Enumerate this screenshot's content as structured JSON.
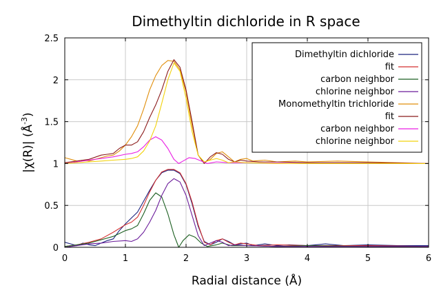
{
  "chart_data": {
    "type": "line",
    "title": "Dimethyltin dichloride in R space",
    "xlabel": "Radial distance    (Å)",
    "ylabel": "|χ(R)|    (Å",
    "ylabel_sup": "-3",
    "ylabel_close": ")",
    "xlim": [
      0,
      6
    ],
    "ylim": [
      0,
      2.5
    ],
    "x_ticks": [
      "0",
      "1",
      "2",
      "3",
      "4",
      "5",
      "6"
    ],
    "y_ticks": [
      "0",
      "0.5",
      "1",
      "1.5",
      "2",
      "2.5"
    ],
    "grid": true,
    "legend_position": "top-right",
    "series": [
      {
        "name": "Dimethyltin dichloride",
        "color": "#1a237e",
        "points": [
          [
            0,
            0.06
          ],
          [
            0.1,
            0.04
          ],
          [
            0.2,
            0.02
          ],
          [
            0.3,
            0.05
          ],
          [
            0.4,
            0.03
          ],
          [
            0.5,
            0.02
          ],
          [
            0.6,
            0.05
          ],
          [
            0.7,
            0.08
          ],
          [
            0.8,
            0.1
          ],
          [
            0.9,
            0.2
          ],
          [
            1.0,
            0.28
          ],
          [
            1.1,
            0.35
          ],
          [
            1.2,
            0.42
          ],
          [
            1.3,
            0.55
          ],
          [
            1.4,
            0.68
          ],
          [
            1.5,
            0.8
          ],
          [
            1.6,
            0.89
          ],
          [
            1.7,
            0.92
          ],
          [
            1.8,
            0.92
          ],
          [
            1.9,
            0.88
          ],
          [
            2.0,
            0.75
          ],
          [
            2.1,
            0.52
          ],
          [
            2.2,
            0.25
          ],
          [
            2.3,
            0.07
          ],
          [
            2.4,
            0.03
          ],
          [
            2.5,
            0.06
          ],
          [
            2.6,
            0.1
          ],
          [
            2.7,
            0.07
          ],
          [
            2.8,
            0.03
          ],
          [
            2.9,
            0.04
          ],
          [
            3.0,
            0.05
          ],
          [
            3.1,
            0.02
          ],
          [
            3.3,
            0.04
          ],
          [
            3.5,
            0.02
          ],
          [
            3.7,
            0.03
          ],
          [
            4.0,
            0.02
          ],
          [
            4.3,
            0.04
          ],
          [
            4.6,
            0.02
          ],
          [
            5.0,
            0.03
          ],
          [
            5.5,
            0.02
          ],
          [
            6.0,
            0.02
          ]
        ]
      },
      {
        "name": "fit",
        "color": "#d32f2f",
        "points": [
          [
            0,
            0.01
          ],
          [
            0.2,
            0.03
          ],
          [
            0.4,
            0.06
          ],
          [
            0.6,
            0.1
          ],
          [
            0.8,
            0.18
          ],
          [
            1.0,
            0.27
          ],
          [
            1.1,
            0.3
          ],
          [
            1.2,
            0.36
          ],
          [
            1.3,
            0.5
          ],
          [
            1.4,
            0.66
          ],
          [
            1.5,
            0.8
          ],
          [
            1.6,
            0.9
          ],
          [
            1.7,
            0.93
          ],
          [
            1.8,
            0.93
          ],
          [
            1.9,
            0.89
          ],
          [
            2.0,
            0.76
          ],
          [
            2.1,
            0.54
          ],
          [
            2.2,
            0.27
          ],
          [
            2.3,
            0.06
          ],
          [
            2.4,
            0.03
          ],
          [
            2.5,
            0.08
          ],
          [
            2.6,
            0.1
          ],
          [
            2.7,
            0.06
          ],
          [
            2.8,
            0.03
          ],
          [
            2.9,
            0.05
          ],
          [
            3.0,
            0.04
          ],
          [
            3.2,
            0.02
          ],
          [
            3.5,
            0.03
          ],
          [
            4.0,
            0.02
          ],
          [
            4.5,
            0.02
          ],
          [
            5.0,
            0.02
          ],
          [
            6.0,
            0.01
          ]
        ]
      },
      {
        "name": "carbon neighbor",
        "color": "#1b5e20",
        "points": [
          [
            0,
            0.01
          ],
          [
            0.2,
            0.03
          ],
          [
            0.4,
            0.05
          ],
          [
            0.6,
            0.09
          ],
          [
            0.8,
            0.13
          ],
          [
            1.0,
            0.2
          ],
          [
            1.1,
            0.22
          ],
          [
            1.2,
            0.26
          ],
          [
            1.3,
            0.4
          ],
          [
            1.4,
            0.56
          ],
          [
            1.5,
            0.65
          ],
          [
            1.6,
            0.6
          ],
          [
            1.7,
            0.4
          ],
          [
            1.8,
            0.15
          ],
          [
            1.88,
            0.0
          ],
          [
            1.95,
            0.08
          ],
          [
            2.05,
            0.15
          ],
          [
            2.15,
            0.12
          ],
          [
            2.25,
            0.05
          ],
          [
            2.35,
            0.01
          ],
          [
            2.5,
            0.03
          ],
          [
            2.6,
            0.05
          ],
          [
            2.75,
            0.02
          ],
          [
            3.0,
            0.02
          ],
          [
            3.5,
            0.01
          ],
          [
            4.0,
            0.02
          ],
          [
            5.0,
            0.01
          ],
          [
            6.0,
            0.01
          ]
        ]
      },
      {
        "name": "chlorine neighbor",
        "color": "#6a1b9a",
        "points": [
          [
            0,
            0.0
          ],
          [
            0.2,
            0.02
          ],
          [
            0.4,
            0.04
          ],
          [
            0.6,
            0.05
          ],
          [
            0.8,
            0.07
          ],
          [
            1.0,
            0.08
          ],
          [
            1.1,
            0.07
          ],
          [
            1.2,
            0.1
          ],
          [
            1.3,
            0.18
          ],
          [
            1.4,
            0.3
          ],
          [
            1.5,
            0.44
          ],
          [
            1.6,
            0.62
          ],
          [
            1.7,
            0.76
          ],
          [
            1.8,
            0.82
          ],
          [
            1.9,
            0.78
          ],
          [
            2.0,
            0.62
          ],
          [
            2.1,
            0.38
          ],
          [
            2.2,
            0.14
          ],
          [
            2.3,
            0.02
          ],
          [
            2.4,
            0.05
          ],
          [
            2.5,
            0.08
          ],
          [
            2.6,
            0.06
          ],
          [
            2.7,
            0.02
          ],
          [
            2.8,
            0.03
          ],
          [
            3.0,
            0.02
          ],
          [
            3.5,
            0.01
          ],
          [
            4.0,
            0.01
          ],
          [
            5.0,
            0.01
          ],
          [
            6.0,
            0.01
          ]
        ]
      },
      {
        "name": "Monomethyltin trichloride",
        "color": "#e08e0b",
        "points": [
          [
            0,
            1.07
          ],
          [
            0.1,
            1.05
          ],
          [
            0.2,
            1.03
          ],
          [
            0.3,
            1.04
          ],
          [
            0.4,
            1.03
          ],
          [
            0.5,
            1.05
          ],
          [
            0.6,
            1.07
          ],
          [
            0.7,
            1.09
          ],
          [
            0.8,
            1.1
          ],
          [
            0.9,
            1.15
          ],
          [
            1.0,
            1.22
          ],
          [
            1.1,
            1.32
          ],
          [
            1.2,
            1.45
          ],
          [
            1.3,
            1.65
          ],
          [
            1.4,
            1.88
          ],
          [
            1.5,
            2.05
          ],
          [
            1.6,
            2.17
          ],
          [
            1.7,
            2.23
          ],
          [
            1.8,
            2.22
          ],
          [
            1.9,
            2.12
          ],
          [
            2.0,
            1.85
          ],
          [
            2.1,
            1.45
          ],
          [
            2.2,
            1.1
          ],
          [
            2.3,
            1.01
          ],
          [
            2.4,
            1.05
          ],
          [
            2.5,
            1.12
          ],
          [
            2.6,
            1.14
          ],
          [
            2.7,
            1.08
          ],
          [
            2.8,
            1.02
          ],
          [
            2.9,
            1.05
          ],
          [
            3.0,
            1.06
          ],
          [
            3.1,
            1.03
          ],
          [
            3.3,
            1.04
          ],
          [
            3.5,
            1.02
          ],
          [
            3.8,
            1.03
          ],
          [
            4.0,
            1.02
          ],
          [
            4.5,
            1.03
          ],
          [
            5.0,
            1.02
          ],
          [
            5.5,
            1.01
          ],
          [
            6.0,
            1.0
          ]
        ]
      },
      {
        "name": "fit",
        "color": "#8b1a1a",
        "points": [
          [
            0,
            1.01
          ],
          [
            0.2,
            1.03
          ],
          [
            0.4,
            1.05
          ],
          [
            0.6,
            1.1
          ],
          [
            0.7,
            1.11
          ],
          [
            0.8,
            1.12
          ],
          [
            0.9,
            1.18
          ],
          [
            1.0,
            1.22
          ],
          [
            1.1,
            1.22
          ],
          [
            1.2,
            1.26
          ],
          [
            1.3,
            1.38
          ],
          [
            1.4,
            1.55
          ],
          [
            1.5,
            1.7
          ],
          [
            1.6,
            1.88
          ],
          [
            1.7,
            2.1
          ],
          [
            1.8,
            2.24
          ],
          [
            1.9,
            2.15
          ],
          [
            2.0,
            1.88
          ],
          [
            2.1,
            1.5
          ],
          [
            2.2,
            1.1
          ],
          [
            2.3,
            1.0
          ],
          [
            2.4,
            1.08
          ],
          [
            2.5,
            1.13
          ],
          [
            2.6,
            1.11
          ],
          [
            2.7,
            1.05
          ],
          [
            2.8,
            1.02
          ],
          [
            2.9,
            1.04
          ],
          [
            3.0,
            1.03
          ],
          [
            3.2,
            1.02
          ],
          [
            3.5,
            1.02
          ],
          [
            4.0,
            1.01
          ],
          [
            5.0,
            1.01
          ],
          [
            6.0,
            1.0
          ]
        ]
      },
      {
        "name": "carbon neighbor",
        "color": "#e91ee3",
        "points": [
          [
            0,
            1.0
          ],
          [
            0.2,
            1.02
          ],
          [
            0.4,
            1.04
          ],
          [
            0.6,
            1.06
          ],
          [
            0.8,
            1.08
          ],
          [
            1.0,
            1.11
          ],
          [
            1.1,
            1.12
          ],
          [
            1.2,
            1.14
          ],
          [
            1.3,
            1.2
          ],
          [
            1.4,
            1.28
          ],
          [
            1.5,
            1.32
          ],
          [
            1.6,
            1.28
          ],
          [
            1.7,
            1.18
          ],
          [
            1.8,
            1.05
          ],
          [
            1.88,
            1.0
          ],
          [
            1.95,
            1.03
          ],
          [
            2.05,
            1.07
          ],
          [
            2.15,
            1.06
          ],
          [
            2.25,
            1.03
          ],
          [
            2.35,
            1.0
          ],
          [
            2.5,
            1.02
          ],
          [
            2.7,
            1.01
          ],
          [
            3.0,
            1.01
          ],
          [
            4.0,
            1.0
          ],
          [
            6.0,
            1.0
          ]
        ]
      },
      {
        "name": "chlorine neighbor",
        "color": "#f2d20c",
        "points": [
          [
            0,
            1.0
          ],
          [
            0.2,
            1.01
          ],
          [
            0.4,
            1.02
          ],
          [
            0.6,
            1.03
          ],
          [
            0.8,
            1.04
          ],
          [
            1.0,
            1.05
          ],
          [
            1.1,
            1.06
          ],
          [
            1.2,
            1.08
          ],
          [
            1.3,
            1.15
          ],
          [
            1.4,
            1.27
          ],
          [
            1.5,
            1.45
          ],
          [
            1.6,
            1.72
          ],
          [
            1.7,
            2.0
          ],
          [
            1.8,
            2.2
          ],
          [
            1.9,
            2.1
          ],
          [
            2.0,
            1.78
          ],
          [
            2.1,
            1.38
          ],
          [
            2.2,
            1.1
          ],
          [
            2.3,
            1.02
          ],
          [
            2.4,
            1.04
          ],
          [
            2.5,
            1.06
          ],
          [
            2.6,
            1.04
          ],
          [
            2.7,
            1.01
          ],
          [
            2.8,
            1.02
          ],
          [
            3.0,
            1.01
          ],
          [
            3.5,
            1.0
          ],
          [
            4.0,
            1.0
          ],
          [
            6.0,
            1.0
          ]
        ]
      }
    ]
  }
}
